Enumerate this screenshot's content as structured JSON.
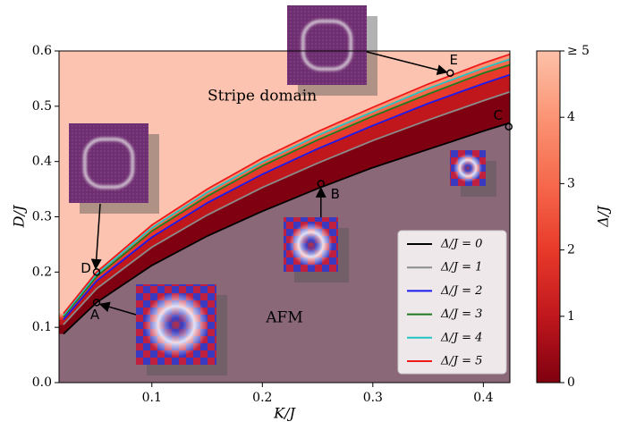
{
  "chart_data": {
    "type": "line",
    "xlabel": "K/J",
    "ylabel": "D/J",
    "xlim": [
      0.016,
      0.424
    ],
    "ylim": [
      0,
      0.6
    ],
    "xticks": [
      0.1,
      0.2,
      0.3,
      0.4
    ],
    "yticks": [
      {
        "value": 0,
        "label": "0.0"
      },
      0.1,
      0.2,
      0.3,
      0.4,
      0.5,
      0.6
    ],
    "x": [
      0.02,
      0.05,
      0.1,
      0.15,
      0.2,
      0.25,
      0.3,
      0.35,
      0.4,
      0.424
    ],
    "series": [
      {
        "name": "Δ/J = 0",
        "color": "#000000",
        "values": [
          0.088,
          0.145,
          0.212,
          0.265,
          0.31,
          0.351,
          0.389,
          0.422,
          0.455,
          0.47
        ]
      },
      {
        "name": "Δ/J = 1",
        "color": "#8c8c8c",
        "values": [
          0.105,
          0.17,
          0.245,
          0.303,
          0.353,
          0.397,
          0.438,
          0.475,
          0.51,
          0.526
        ]
      },
      {
        "name": "Δ/J = 2",
        "color": "#1a1aee",
        "values": [
          0.114,
          0.184,
          0.263,
          0.325,
          0.377,
          0.423,
          0.465,
          0.505,
          0.541,
          0.557
        ]
      },
      {
        "name": "Δ/J = 3",
        "color": "#1f7a1f",
        "values": [
          0.119,
          0.192,
          0.274,
          0.337,
          0.392,
          0.439,
          0.482,
          0.522,
          0.56,
          0.575
        ]
      },
      {
        "name": "Δ/J = 4",
        "color": "#22c4c4",
        "values": [
          0.122,
          0.196,
          0.28,
          0.344,
          0.399,
          0.447,
          0.49,
          0.532,
          0.569,
          0.585
        ]
      },
      {
        "name": "Δ/J = 5",
        "color": "#ee1a1a",
        "values": [
          0.125,
          0.2,
          0.285,
          0.35,
          0.406,
          0.454,
          0.498,
          0.54,
          0.578,
          0.594
        ]
      }
    ],
    "points": [
      {
        "label": "A",
        "x": 0.05,
        "y": 0.145
      },
      {
        "label": "B",
        "x": 0.253,
        "y": 0.36
      },
      {
        "label": "C",
        "x": 0.423,
        "y": 0.463
      },
      {
        "label": "D",
        "x": 0.05,
        "y": 0.2
      },
      {
        "label": "E",
        "x": 0.37,
        "y": 0.56
      }
    ],
    "annotations": [
      "Stripe domain",
      "AFM"
    ],
    "colorbar": {
      "label": "Δ/J",
      "lim": [
        0,
        5
      ],
      "ticks": [
        0,
        1,
        2,
        3,
        4,
        {
          "value": 5,
          "label": "≥ 5"
        }
      ],
      "colors": [
        "#7f0010",
        "#c0171d",
        "#e83a2a",
        "#f6694d",
        "#fb9474",
        "#fdc2a9"
      ]
    },
    "legend": "lower right"
  }
}
